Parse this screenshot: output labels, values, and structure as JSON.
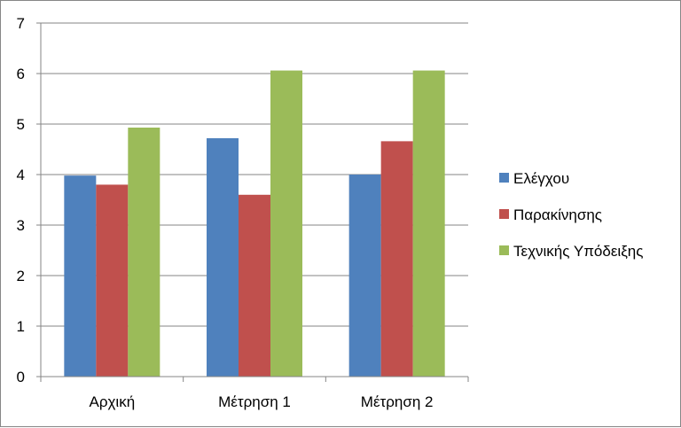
{
  "chart_data": {
    "type": "bar",
    "categories": [
      "Αρχική",
      "Μέτρηση 1",
      "Μέτρηση 2"
    ],
    "series": [
      {
        "name": "Ελέγχου",
        "values": [
          3.98,
          4.72,
          4.0
        ],
        "color": "#4f81bd"
      },
      {
        "name": "Παρακίνησης",
        "values": [
          3.8,
          3.6,
          4.66
        ],
        "color": "#c0504d"
      },
      {
        "name": "Τεχνικής Υπόδειξης",
        "values": [
          4.93,
          6.06,
          6.06
        ],
        "color": "#9bbb59"
      }
    ],
    "title": "",
    "xlabel": "",
    "ylabel": "",
    "ylim": [
      0,
      7
    ],
    "yticks": [
      "0",
      "1",
      "2",
      "3",
      "4",
      "5",
      "6",
      "7"
    ],
    "grid": true,
    "legend_position": "right"
  }
}
